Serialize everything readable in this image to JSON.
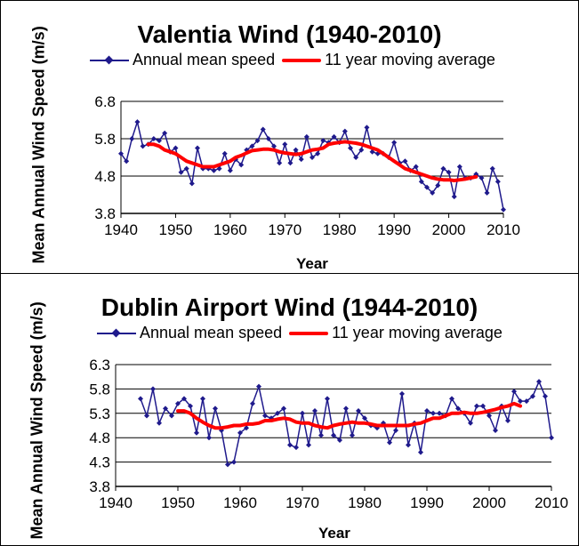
{
  "colors": {
    "series": "#1f1a8c",
    "moving_average": "#ff0000",
    "gridline": "#000000"
  },
  "chart_data": [
    {
      "type": "line",
      "title": "Valentia Wind (1940-2010)",
      "xlabel": "Year",
      "ylabel": "Mean Annual Wind Speed (m/s)",
      "xlim": [
        1940,
        2010
      ],
      "ylim": [
        3.8,
        6.8
      ],
      "xticks": [
        "1940",
        "1950",
        "1960",
        "1970",
        "1980",
        "1990",
        "2000",
        "2010"
      ],
      "yticks": [
        "3.8",
        "4.8",
        "5.8",
        "6.8"
      ],
      "grid": true,
      "legend": "top",
      "series": [
        {
          "name": "Annual mean speed",
          "marker": "diamond",
          "x": [
            1940,
            1941,
            1942,
            1943,
            1944,
            1945,
            1946,
            1947,
            1948,
            1949,
            1950,
            1951,
            1952,
            1953,
            1954,
            1955,
            1956,
            1957,
            1958,
            1959,
            1960,
            1961,
            1962,
            1963,
            1964,
            1965,
            1966,
            1967,
            1968,
            1969,
            1970,
            1971,
            1972,
            1973,
            1974,
            1975,
            1976,
            1977,
            1978,
            1979,
            1980,
            1981,
            1982,
            1983,
            1984,
            1985,
            1986,
            1987,
            1988,
            1989,
            1990,
            1991,
            1992,
            1993,
            1994,
            1995,
            1996,
            1997,
            1998,
            1999,
            2000,
            2001,
            2002,
            2003,
            2004,
            2005,
            2006,
            2007,
            2008,
            2009,
            2010
          ],
          "y": [
            5.4,
            5.2,
            5.8,
            6.25,
            5.6,
            5.65,
            5.8,
            5.75,
            5.95,
            5.45,
            5.55,
            4.9,
            5.0,
            4.6,
            5.55,
            5.0,
            5.0,
            4.95,
            5.0,
            5.4,
            4.95,
            5.25,
            5.1,
            5.5,
            5.6,
            5.75,
            6.05,
            5.8,
            5.6,
            5.15,
            5.65,
            5.15,
            5.5,
            5.25,
            5.85,
            5.3,
            5.4,
            5.75,
            5.7,
            5.85,
            5.7,
            6.0,
            5.55,
            5.3,
            5.5,
            6.1,
            5.45,
            5.4,
            5.4,
            5.3,
            5.7,
            5.15,
            5.2,
            4.95,
            5.05,
            4.65,
            4.5,
            4.35,
            4.55,
            5.0,
            4.9,
            4.25,
            5.05,
            4.75,
            4.75,
            4.85,
            4.75,
            4.35,
            5.0,
            4.65,
            3.9
          ]
        },
        {
          "name": "11 year moving average",
          "x": [
            1945,
            1946,
            1947,
            1948,
            1949,
            1950,
            1951,
            1952,
            1953,
            1954,
            1955,
            1956,
            1957,
            1958,
            1959,
            1960,
            1961,
            1962,
            1963,
            1964,
            1965,
            1966,
            1967,
            1968,
            1969,
            1970,
            1971,
            1972,
            1973,
            1974,
            1975,
            1976,
            1977,
            1978,
            1979,
            1980,
            1981,
            1982,
            1983,
            1984,
            1985,
            1986,
            1987,
            1988,
            1989,
            1990,
            1991,
            1992,
            1993,
            1994,
            1995,
            1996,
            1997,
            1998,
            1999,
            2000,
            2001,
            2002,
            2003,
            2004,
            2005
          ],
          "y": [
            5.65,
            5.65,
            5.6,
            5.5,
            5.45,
            5.4,
            5.3,
            5.2,
            5.15,
            5.1,
            5.05,
            5.05,
            5.05,
            5.1,
            5.15,
            5.2,
            5.3,
            5.35,
            5.42,
            5.48,
            5.5,
            5.52,
            5.52,
            5.5,
            5.45,
            5.42,
            5.4,
            5.38,
            5.4,
            5.45,
            5.5,
            5.52,
            5.55,
            5.65,
            5.68,
            5.7,
            5.72,
            5.7,
            5.68,
            5.65,
            5.6,
            5.55,
            5.5,
            5.4,
            5.3,
            5.2,
            5.1,
            5.0,
            4.95,
            4.9,
            4.85,
            4.8,
            4.75,
            4.72,
            4.7,
            4.7,
            4.68,
            4.7,
            4.72,
            4.75,
            4.78
          ]
        }
      ]
    },
    {
      "type": "line",
      "title": "Dublin Airport Wind (1944-2010)",
      "xlabel": "Year",
      "ylabel": "Mean Annual Wind Speed (m/s)",
      "xlim": [
        1940,
        2010
      ],
      "ylim": [
        3.8,
        6.3
      ],
      "xticks": [
        "1940",
        "1950",
        "1960",
        "1970",
        "1980",
        "1990",
        "2000",
        "2010"
      ],
      "yticks": [
        "3.8",
        "4.3",
        "4.8",
        "5.3",
        "5.8",
        "6.3"
      ],
      "grid": true,
      "legend": "top",
      "series": [
        {
          "name": "Annual mean speed",
          "marker": "diamond",
          "x": [
            1944,
            1945,
            1946,
            1947,
            1948,
            1949,
            1950,
            1951,
            1952,
            1953,
            1954,
            1955,
            1956,
            1957,
            1958,
            1959,
            1960,
            1961,
            1962,
            1963,
            1964,
            1965,
            1966,
            1967,
            1968,
            1969,
            1970,
            1971,
            1972,
            1973,
            1974,
            1975,
            1976,
            1977,
            1978,
            1979,
            1980,
            1981,
            1982,
            1983,
            1984,
            1985,
            1986,
            1987,
            1988,
            1989,
            1990,
            1991,
            1992,
            1993,
            1994,
            1995,
            1996,
            1997,
            1998,
            1999,
            2000,
            2001,
            2002,
            2003,
            2004,
            2005,
            2006,
            2007,
            2008,
            2009,
            2010
          ],
          "y": [
            5.6,
            5.25,
            5.8,
            5.1,
            5.4,
            5.25,
            5.5,
            5.6,
            5.45,
            4.9,
            5.6,
            4.8,
            5.4,
            4.95,
            4.25,
            4.3,
            4.9,
            5.0,
            5.5,
            5.85,
            5.25,
            5.2,
            5.3,
            5.4,
            4.65,
            4.6,
            5.3,
            4.65,
            5.35,
            4.85,
            5.6,
            4.85,
            4.75,
            5.4,
            4.85,
            5.35,
            5.2,
            5.05,
            5.0,
            5.1,
            4.7,
            4.95,
            5.7,
            4.65,
            5.1,
            4.5,
            5.35,
            5.3,
            5.3,
            5.25,
            5.6,
            5.4,
            5.3,
            5.1,
            5.45,
            5.45,
            5.25,
            4.95,
            5.45,
            5.15,
            5.75,
            5.55,
            5.55,
            5.65,
            5.95,
            5.65,
            4.8
          ]
        },
        {
          "name": "11 year moving average",
          "x": [
            1950,
            1951,
            1952,
            1953,
            1954,
            1955,
            1956,
            1957,
            1958,
            1959,
            1960,
            1961,
            1962,
            1963,
            1964,
            1965,
            1966,
            1967,
            1968,
            1969,
            1970,
            1971,
            1972,
            1973,
            1974,
            1975,
            1976,
            1977,
            1978,
            1979,
            1980,
            1981,
            1982,
            1983,
            1984,
            1985,
            1986,
            1987,
            1988,
            1989,
            1990,
            1991,
            1992,
            1993,
            1994,
            1995,
            1996,
            1997,
            1998,
            1999,
            2000,
            2001,
            2002,
            2003,
            2004,
            2005
          ],
          "y": [
            5.35,
            5.35,
            5.3,
            5.2,
            5.12,
            5.05,
            5.0,
            5.0,
            5.02,
            5.05,
            5.05,
            5.08,
            5.08,
            5.1,
            5.15,
            5.15,
            5.18,
            5.2,
            5.18,
            5.12,
            5.1,
            5.1,
            5.05,
            5.02,
            5.0,
            5.05,
            5.08,
            5.1,
            5.12,
            5.1,
            5.1,
            5.08,
            5.05,
            5.05,
            5.05,
            5.05,
            5.05,
            5.05,
            5.08,
            5.1,
            5.15,
            5.2,
            5.2,
            5.25,
            5.3,
            5.3,
            5.32,
            5.3,
            5.3,
            5.32,
            5.35,
            5.38,
            5.42,
            5.45,
            5.5,
            5.45
          ]
        }
      ]
    }
  ]
}
